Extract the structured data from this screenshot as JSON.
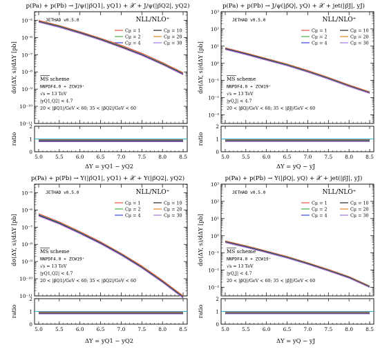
{
  "colors": {
    "Cp=1": "#e8432b",
    "Cp=2": "#3aa83a",
    "Cp=4": "#2233dd",
    "Cp=10": "#111111",
    "Cp=20": "#e07a1a",
    "Cp=30": "#9a6ad8",
    "ratio_ref": "#2ab0d0"
  },
  "chart_data": [
    {
      "type": "line",
      "title": "p(Pa) + p(Pb) → J/ψ(|p⃗Q1|, yQ1) + 𝒳 + J/ψ(|p⃗Q2|, yQ2)",
      "xlabel": "ΔY = yQ1 − yQ2",
      "ylabel": "dσ(ΔY, s)/dΔY [pb]",
      "ratio_label": "ratio",
      "watermark": "JETHAD v0.5.0",
      "legend_title": "NLL/NLO⁺",
      "legend_labels": [
        "Cμ = 1",
        "Cμ = 2",
        "Cμ = 4",
        "Cμ = 10",
        "Cμ = 20",
        "Cμ = 30"
      ],
      "annotations": [
        "MS scheme",
        "NNPDF4.0 + ZCW19⁺",
        "√s = 13 TeV",
        "|yQ1,Q2| < 4.7",
        "20 < |p⃗Q1|/GeV < 60; 35 < |p⃗Q2|/GeV < 60"
      ],
      "log_y": true,
      "ylim_exp": [
        -11,
        -4.5
      ],
      "ytick_labels": [
        "10⁻⁵",
        "10⁻⁶",
        "10⁻⁷",
        "10⁻⁸",
        "10⁻⁹",
        "10⁻¹⁰",
        "10⁻¹¹"
      ],
      "ytick_exps": [
        -5,
        -6,
        -7,
        -8,
        -9,
        -10,
        -11
      ],
      "xlim": [
        4.9,
        8.6
      ],
      "xticks": [
        5.0,
        5.5,
        6.0,
        6.5,
        7.0,
        7.5,
        8.0,
        8.5
      ],
      "xtick_labels": [
        "5.0",
        "5.5",
        "6.0",
        "6.5",
        "7.0",
        "7.5",
        "8.0",
        "8.5"
      ],
      "ratio_ylim": [
        0,
        2
      ],
      "ratio_yticks": [
        0,
        1,
        2
      ],
      "ratio_ytick_labels": [
        "0",
        "1",
        "2"
      ],
      "x": [
        5.0,
        5.5,
        6.0,
        6.5,
        7.0,
        7.5,
        8.0,
        8.5
      ],
      "series": [
        {
          "name": "Cμ = 1",
          "color_key": "Cp=1",
          "values": [
            1e-05,
            5e-06,
            2.2e-06,
            9e-07,
            3.5e-07,
            1.2e-07,
            3.5e-08,
            9e-09
          ],
          "ratio": [
            0.95,
            0.95,
            0.95,
            0.95,
            0.95,
            0.95,
            0.95,
            0.95
          ]
        },
        {
          "name": "Cμ = 2",
          "color_key": "Cp=2",
          "values": [
            9e-06,
            4.6e-06,
            2e-06,
            8.2e-07,
            3.1e-07,
            1.05e-07,
            3.1e-08,
            8e-09
          ],
          "ratio": [
            0.9,
            0.9,
            0.9,
            0.9,
            0.9,
            0.9,
            0.9,
            0.9
          ]
        },
        {
          "name": "Cμ = 4",
          "color_key": "Cp=4",
          "values": [
            8.6e-06,
            4.3e-06,
            1.9e-06,
            7.8e-07,
            2.9e-07,
            1e-07,
            2.9e-08,
            7.5e-09
          ],
          "ratio": [
            0.86,
            0.86,
            0.86,
            0.86,
            0.86,
            0.86,
            0.86,
            0.86
          ]
        },
        {
          "name": "Cμ = 10",
          "color_key": "Cp=10",
          "values": [
            8.3e-06,
            4.1e-06,
            1.8e-06,
            7.5e-07,
            2.8e-07,
            9.5e-08,
            2.8e-08,
            7.2e-09
          ],
          "ratio": [
            0.82,
            0.82,
            0.82,
            0.82,
            0.82,
            0.82,
            0.82,
            0.82
          ]
        },
        {
          "name": "Cμ = 20",
          "color_key": "Cp=20",
          "values": [
            8e-06,
            4e-06,
            1.75e-06,
            7.2e-07,
            2.7e-07,
            9.2e-08,
            2.7e-08,
            7e-09
          ],
          "ratio": [
            0.8,
            0.8,
            0.8,
            0.8,
            0.8,
            0.8,
            0.8,
            0.8
          ]
        },
        {
          "name": "Cμ = 30",
          "color_key": "Cp=30",
          "values": [
            7.8e-06,
            3.9e-06,
            1.7e-06,
            7e-07,
            2.6e-07,
            9e-08,
            2.6e-08,
            6.8e-09
          ],
          "ratio": [
            0.78,
            0.78,
            0.78,
            0.78,
            0.78,
            0.78,
            0.78,
            0.78
          ]
        }
      ]
    },
    {
      "type": "line",
      "title": "p(Pa) + p(Pb) → J/ψ(|p⃗Q|, yQ) + 𝒳 + jet(|p⃗J|, yJ)",
      "xlabel": "ΔY = yQ − yJ",
      "ylabel": "dσ(ΔY, s)/dΔY [pb]",
      "ratio_label": "ratio",
      "watermark": "JETHAD v0.5.0",
      "legend_title": "NLL/NLO⁺",
      "legend_labels": [
        "Cμ = 1",
        "Cμ = 2",
        "Cμ = 4",
        "Cμ = 10",
        "Cμ = 20",
        "Cμ = 30"
      ],
      "annotations": [
        "MS scheme",
        "NNPDF4.0 + ZCW19⁺",
        "√s = 13 TeV",
        "|yQ,J| < 4.7",
        "20 < |p⃗Q|/GeV < 60; 35 < |p⃗J|/GeV < 60"
      ],
      "log_y": true,
      "ylim_exp": [
        -3.5,
        3
      ],
      "ytick_labels": [
        "10³",
        "10²",
        "10¹",
        "10⁰",
        "10⁻¹",
        "10⁻²",
        "10⁻³"
      ],
      "ytick_exps": [
        3,
        2,
        1,
        0,
        -1,
        -2,
        -3
      ],
      "xlim": [
        4.9,
        8.6
      ],
      "xticks": [
        5.0,
        5.5,
        6.0,
        6.5,
        7.0,
        7.5,
        8.0,
        8.5
      ],
      "xtick_labels": [
        "5.0",
        "5.5",
        "6.0",
        "6.5",
        "7.0",
        "7.5",
        "8.0",
        "8.5"
      ],
      "ratio_ylim": [
        0,
        2
      ],
      "ratio_yticks": [
        0,
        1,
        2
      ],
      "ratio_ytick_labels": [
        "0",
        "1",
        "2"
      ],
      "x": [
        5.0,
        5.5,
        6.0,
        6.5,
        7.0,
        7.5,
        8.0,
        8.5
      ],
      "series": [
        {
          "name": "Cμ = 1",
          "color_key": "Cp=1",
          "values": [
            8.0,
            4.0,
            1.9,
            0.9,
            0.38,
            0.15,
            0.055,
            0.022
          ],
          "ratio": [
            0.95,
            0.95,
            0.95,
            0.95,
            0.95,
            0.95,
            0.95,
            0.95
          ]
        },
        {
          "name": "Cμ = 2",
          "color_key": "Cp=2",
          "values": [
            7.4,
            3.7,
            1.75,
            0.83,
            0.35,
            0.14,
            0.05,
            0.02
          ],
          "ratio": [
            0.9,
            0.9,
            0.9,
            0.9,
            0.9,
            0.9,
            0.9,
            0.9
          ]
        },
        {
          "name": "Cμ = 4",
          "color_key": "Cp=4",
          "values": [
            7.0,
            3.5,
            1.65,
            0.78,
            0.33,
            0.13,
            0.048,
            0.019
          ],
          "ratio": [
            0.86,
            0.86,
            0.86,
            0.86,
            0.86,
            0.86,
            0.86,
            0.86
          ]
        },
        {
          "name": "Cμ = 10",
          "color_key": "Cp=10",
          "values": [
            6.7,
            3.35,
            1.58,
            0.75,
            0.32,
            0.125,
            0.046,
            0.0185
          ],
          "ratio": [
            0.83,
            0.83,
            0.83,
            0.83,
            0.83,
            0.83,
            0.83,
            0.83
          ]
        },
        {
          "name": "Cμ = 20",
          "color_key": "Cp=20",
          "values": [
            6.5,
            3.25,
            1.53,
            0.73,
            0.31,
            0.122,
            0.045,
            0.018
          ],
          "ratio": [
            0.81,
            0.81,
            0.81,
            0.81,
            0.81,
            0.81,
            0.81,
            0.81
          ]
        },
        {
          "name": "Cμ = 30",
          "color_key": "Cp=30",
          "values": [
            6.4,
            3.2,
            1.5,
            0.72,
            0.305,
            0.12,
            0.044,
            0.0178
          ],
          "ratio": [
            0.8,
            0.8,
            0.8,
            0.8,
            0.8,
            0.8,
            0.8,
            0.8
          ]
        }
      ]
    },
    {
      "type": "line",
      "title": "p(Pa) + p(Pb) → Υ(|p⃗Q1|, yQ1) + 𝒳 + Υ(|p⃗Q2|, yQ2)",
      "xlabel": "ΔY = yQ1 − yQ2",
      "ylabel": "dσ(ΔY, s)/dΔY [pb]",
      "ratio_label": "ratio",
      "watermark": "JETHAD v0.5.0",
      "legend_title": "NLL/NLO⁺",
      "legend_labels": [
        "Cμ = 1",
        "Cμ = 2",
        "Cμ = 4",
        "Cμ = 10",
        "Cμ = 20",
        "Cμ = 30"
      ],
      "annotations": [
        "MS scheme",
        "NNPDF4.0 + ZCW19⁺",
        "√s = 13 TeV",
        "|yQ1,Q2| < 4.7",
        "20 < |p⃗Q1|/GeV < 60; 35 < |p⃗Q2|/GeV < 60"
      ],
      "log_y": true,
      "ylim_exp": [
        -11,
        -4.5
      ],
      "ytick_labels": [
        "10⁻⁵",
        "10⁻⁶",
        "10⁻⁷",
        "10⁻⁸",
        "10⁻⁹",
        "10⁻¹⁰",
        "10⁻¹¹"
      ],
      "ytick_exps": [
        -5,
        -6,
        -7,
        -8,
        -9,
        -10,
        -11
      ],
      "xlim": [
        4.9,
        8.6
      ],
      "xticks": [
        5.0,
        5.5,
        6.0,
        6.5,
        7.0,
        7.5,
        8.0,
        8.5
      ],
      "xtick_labels": [
        "5.0",
        "5.5",
        "6.0",
        "6.5",
        "7.0",
        "7.5",
        "8.0",
        "8.5"
      ],
      "ratio_ylim": [
        0,
        2
      ],
      "ratio_yticks": [
        0,
        1,
        2
      ],
      "ratio_ytick_labels": [
        "0",
        "1",
        "2"
      ],
      "x": [
        5.0,
        5.5,
        6.0,
        6.5,
        7.0,
        7.5,
        8.0,
        8.5
      ],
      "series": [
        {
          "name": "Cμ = 1",
          "color_key": "Cp=1",
          "values": [
            6e-07,
            2e-07,
            5.5e-08,
            1.4e-08,
            3e-09,
            5.5e-10,
            8e-11,
            1e-11
          ],
          "ratio": [
            0.95,
            0.95,
            0.95,
            0.95,
            0.95,
            0.95,
            0.95,
            0.95
          ]
        },
        {
          "name": "Cμ = 2",
          "color_key": "Cp=2",
          "values": [
            5.3e-07,
            1.8e-07,
            4.9e-08,
            1.25e-08,
            2.7e-09,
            4.9e-10,
            7.1e-11,
            8.9e-12
          ],
          "ratio": [
            0.9,
            0.9,
            0.9,
            0.9,
            0.9,
            0.9,
            0.9,
            0.9
          ]
        },
        {
          "name": "Cμ = 4",
          "color_key": "Cp=4",
          "values": [
            5e-07,
            1.7e-07,
            4.6e-08,
            1.18e-08,
            2.55e-09,
            4.6e-10,
            6.7e-11,
            8.4e-12
          ],
          "ratio": [
            0.86,
            0.86,
            0.86,
            0.86,
            0.86,
            0.86,
            0.86,
            0.86
          ]
        },
        {
          "name": "Cμ = 10",
          "color_key": "Cp=10",
          "values": [
            4.7e-07,
            1.6e-07,
            4.4e-08,
            1.12e-08,
            2.4e-09,
            4.4e-10,
            6.4e-11,
            8e-12
          ],
          "ratio": [
            0.83,
            0.83,
            0.83,
            0.83,
            0.83,
            0.83,
            0.83,
            0.83
          ]
        },
        {
          "name": "Cμ = 20",
          "color_key": "Cp=20",
          "values": [
            4.5e-07,
            1.55e-07,
            4.25e-08,
            1.08e-08,
            2.33e-09,
            4.25e-10,
            6.2e-11,
            7.8e-12
          ],
          "ratio": [
            0.81,
            0.81,
            0.81,
            0.81,
            0.81,
            0.81,
            0.81,
            0.81
          ]
        },
        {
          "name": "Cμ = 30",
          "color_key": "Cp=30",
          "values": [
            4.4e-07,
            1.5e-07,
            4.15e-08,
            1.06e-08,
            2.28e-09,
            4.15e-10,
            6.1e-11,
            7.6e-12
          ],
          "ratio": [
            0.8,
            0.8,
            0.8,
            0.8,
            0.8,
            0.8,
            0.8,
            0.8
          ]
        }
      ]
    },
    {
      "type": "line",
      "title": "p(Pa) + p(Pb) → Υ(|p⃗Q|, yQ) + 𝒳 + jet(|p⃗J|, yJ)",
      "xlabel": "ΔY = yQ − yJ",
      "ylabel": "dσ(ΔY, s)/dΔY [pb]",
      "ratio_label": "ratio",
      "watermark": "JETHAD v0.5.0",
      "legend_title": "NLL/NLO⁺",
      "legend_labels": [
        "Cμ = 1",
        "Cμ = 2",
        "Cμ = 4",
        "Cμ = 10",
        "Cμ = 20",
        "Cμ = 30"
      ],
      "annotations": [
        "MS scheme",
        "NNPDF4.0 + ZCW19⁺",
        "√s = 13 TeV",
        "|yQ,J| < 4.7",
        "20 < |p⃗Q|/GeV < 60; 35 < |p⃗J|/GeV < 60"
      ],
      "log_y": true,
      "ylim_exp": [
        -3.5,
        3
      ],
      "ytick_labels": [
        "10³",
        "10²",
        "10¹",
        "10⁰",
        "10⁻¹",
        "10⁻²",
        "10⁻³"
      ],
      "ytick_exps": [
        3,
        2,
        1,
        0,
        -1,
        -2,
        -3
      ],
      "xlim": [
        4.9,
        8.6
      ],
      "xticks": [
        5.0,
        5.5,
        6.0,
        6.5,
        7.0,
        7.5,
        8.0,
        8.5
      ],
      "xtick_labels": [
        "5.0",
        "5.5",
        "6.0",
        "6.5",
        "7.0",
        "7.5",
        "8.0",
        "8.5"
      ],
      "ratio_ylim": [
        0,
        2
      ],
      "ratio_yticks": [
        0,
        1,
        2
      ],
      "ratio_ytick_labels": [
        "0",
        "1",
        "2"
      ],
      "x": [
        5.0,
        5.5,
        6.0,
        6.5,
        7.0,
        7.5,
        8.0,
        8.5
      ],
      "series": [
        {
          "name": "Cμ = 1",
          "color_key": "Cp=1",
          "values": [
            0.5,
            0.26,
            0.13,
            0.062,
            0.027,
            0.011,
            0.0042,
            0.0012
          ],
          "ratio": [
            0.95,
            0.95,
            0.95,
            0.95,
            0.95,
            0.95,
            0.95,
            0.95
          ]
        },
        {
          "name": "Cμ = 2",
          "color_key": "Cp=2",
          "values": [
            0.46,
            0.24,
            0.12,
            0.057,
            0.025,
            0.0101,
            0.0039,
            0.00112
          ],
          "ratio": [
            0.9,
            0.9,
            0.9,
            0.9,
            0.9,
            0.9,
            0.9,
            0.9
          ]
        },
        {
          "name": "Cμ = 4",
          "color_key": "Cp=4",
          "values": [
            0.44,
            0.228,
            0.114,
            0.054,
            0.0237,
            0.0096,
            0.0037,
            0.00106
          ],
          "ratio": [
            0.86,
            0.86,
            0.86,
            0.86,
            0.86,
            0.86,
            0.86,
            0.86
          ]
        },
        {
          "name": "Cμ = 10",
          "color_key": "Cp=10",
          "values": [
            0.42,
            0.218,
            0.109,
            0.052,
            0.0227,
            0.0092,
            0.00355,
            0.00102
          ],
          "ratio": [
            0.84,
            0.84,
            0.84,
            0.84,
            0.84,
            0.84,
            0.84,
            0.84
          ]
        },
        {
          "name": "Cμ = 20",
          "color_key": "Cp=20",
          "values": [
            0.41,
            0.213,
            0.106,
            0.051,
            0.0222,
            0.009,
            0.00347,
            0.001
          ],
          "ratio": [
            0.82,
            0.82,
            0.82,
            0.82,
            0.82,
            0.82,
            0.82,
            0.82
          ]
        },
        {
          "name": "Cμ = 30",
          "color_key": "Cp=30",
          "values": [
            0.4,
            0.21,
            0.104,
            0.05,
            0.0218,
            0.0088,
            0.0034,
            0.00098
          ],
          "ratio": [
            0.81,
            0.81,
            0.81,
            0.81,
            0.81,
            0.81,
            0.81,
            0.81
          ]
        }
      ]
    }
  ]
}
